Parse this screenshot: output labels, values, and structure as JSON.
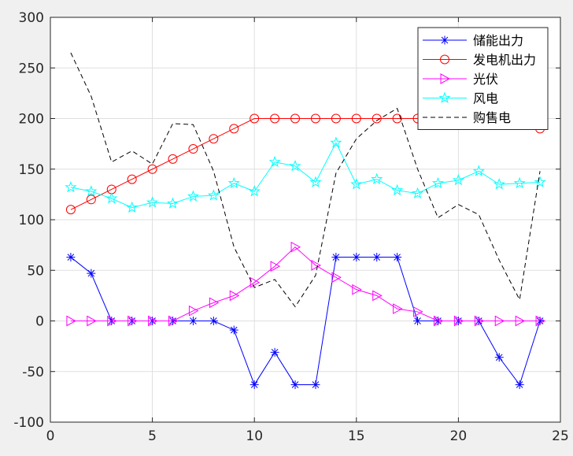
{
  "chart_data": {
    "type": "line",
    "title": "",
    "xlabel": "",
    "ylabel": "",
    "xlim": [
      0,
      25
    ],
    "ylim": [
      -100,
      300
    ],
    "xticks": [
      0,
      5,
      10,
      15,
      20,
      25
    ],
    "yticks": [
      -100,
      -50,
      0,
      50,
      100,
      150,
      200,
      250,
      300
    ],
    "grid": true,
    "legend_position": "top-right",
    "x": [
      1,
      2,
      3,
      4,
      5,
      6,
      7,
      8,
      9,
      10,
      11,
      12,
      13,
      14,
      15,
      16,
      17,
      18,
      19,
      20,
      21,
      22,
      23,
      24
    ],
    "series": [
      {
        "name": "储能出力",
        "color": "#0000ff",
        "marker": "asterisk",
        "dashed": false,
        "values": [
          63,
          47,
          0,
          0,
          0,
          0,
          0,
          0,
          -9,
          -63,
          -31,
          -63,
          -63,
          63,
          63,
          63,
          63,
          0,
          0,
          0,
          0,
          -36,
          -63,
          0
        ]
      },
      {
        "name": "发电机出力",
        "color": "#ff0000",
        "marker": "circle",
        "dashed": false,
        "values": [
          110,
          120,
          130,
          140,
          150,
          160,
          170,
          180,
          190,
          200,
          200,
          200,
          200,
          200,
          200,
          200,
          200,
          200,
          200,
          200,
          200,
          200,
          200,
          190
        ]
      },
      {
        "name": "光伏",
        "color": "#ff00ff",
        "marker": "triangle-right",
        "dashed": false,
        "values": [
          0,
          0,
          0,
          0,
          0,
          0,
          10,
          18,
          25,
          38,
          54,
          73,
          55,
          43,
          31,
          25,
          12,
          9,
          0,
          0,
          0,
          0,
          0,
          0
        ]
      },
      {
        "name": "风电",
        "color": "#00ffff",
        "marker": "pentagram",
        "dashed": false,
        "values": [
          132,
          128,
          121,
          112,
          117,
          116,
          123,
          124,
          136,
          128,
          157,
          153,
          137,
          176,
          135,
          140,
          129,
          126,
          136,
          139,
          148,
          135,
          136,
          137
        ]
      },
      {
        "name": "购售电",
        "color": "#000000",
        "marker": "none",
        "dashed": true,
        "values": [
          265,
          222,
          157,
          168,
          155,
          195,
          194,
          148,
          73,
          33,
          41,
          14,
          45,
          146,
          180,
          198,
          210,
          150,
          102,
          115,
          105,
          60,
          21,
          148
        ]
      }
    ]
  }
}
